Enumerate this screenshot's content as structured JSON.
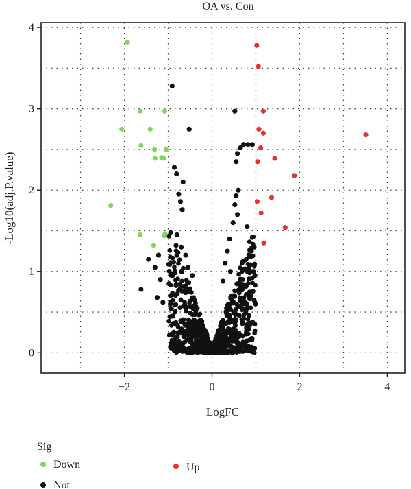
{
  "chart_data": {
    "type": "scatter",
    "title": "OA vs. Con",
    "xlabel": "LogFC",
    "ylabel": "-Log10(adj.P.value)",
    "xlim": [
      -3.9,
      4.4
    ],
    "ylim": [
      -0.25,
      4.06
    ],
    "xticks": [
      -2,
      0,
      2,
      4
    ],
    "xtick_labels": [
      "−2",
      "0",
      "2",
      "4"
    ],
    "yticks": [
      0,
      1,
      2,
      3,
      4
    ],
    "ytick_labels": [
      "0",
      "1",
      "2",
      "3",
      "4"
    ],
    "grid": true,
    "legend": {
      "title": "Sig",
      "position": "bottom-left",
      "entries": [
        {
          "label": "Down",
          "color": "#7ed957"
        },
        {
          "label": "Up",
          "color": "#e8302f"
        },
        {
          "label": "Not",
          "color": "#111111"
        }
      ]
    },
    "series": [
      {
        "name": "Down",
        "color": "#7ed957",
        "points": [
          [
            -1.93,
            3.82
          ],
          [
            -1.64,
            2.97
          ],
          [
            -1.08,
            2.97
          ],
          [
            -2.06,
            2.75
          ],
          [
            -1.41,
            2.75
          ],
          [
            -1.62,
            2.55
          ],
          [
            -1.31,
            2.5
          ],
          [
            -1.05,
            2.5
          ],
          [
            -1.3,
            2.39
          ],
          [
            -1.15,
            2.4
          ],
          [
            -1.1,
            2.39
          ],
          [
            -2.31,
            1.81
          ],
          [
            -1.64,
            1.45
          ],
          [
            -1.07,
            1.46
          ],
          [
            -1.09,
            1.44
          ],
          [
            -1.33,
            1.32
          ]
        ]
      },
      {
        "name": "Up",
        "color": "#e8302f",
        "points": [
          [
            1.02,
            3.78
          ],
          [
            1.06,
            3.52
          ],
          [
            1.17,
            2.97
          ],
          [
            1.07,
            2.75
          ],
          [
            1.17,
            2.7
          ],
          [
            3.51,
            2.68
          ],
          [
            1.11,
            2.52
          ],
          [
            1.43,
            2.39
          ],
          [
            1.04,
            2.35
          ],
          [
            1.88,
            2.18
          ],
          [
            1.36,
            1.91
          ],
          [
            1.03,
            1.86
          ],
          [
            1.12,
            1.72
          ],
          [
            1.67,
            1.54
          ],
          [
            1.18,
            1.35
          ]
        ]
      },
      {
        "name": "Not",
        "color": "#111111",
        "points": [
          [
            -0.91,
            3.28
          ],
          [
            -0.52,
            2.75
          ],
          [
            0.52,
            2.97
          ],
          [
            0.72,
            2.56
          ],
          [
            0.82,
            2.56
          ],
          [
            0.92,
            2.56
          ],
          [
            0.65,
            2.52
          ],
          [
            0.58,
            2.45
          ],
          [
            0.55,
            2.35
          ],
          [
            -0.86,
            2.28
          ],
          [
            -0.81,
            2.2
          ],
          [
            -0.66,
            2.1
          ],
          [
            -0.76,
            1.95
          ],
          [
            -0.72,
            1.86
          ],
          [
            -0.68,
            1.76
          ],
          [
            0.6,
            2.0
          ],
          [
            0.55,
            1.93
          ],
          [
            0.52,
            1.82
          ],
          [
            0.58,
            1.7
          ],
          [
            0.48,
            1.6
          ],
          [
            -0.82,
            1.32
          ],
          [
            -1.22,
            1.2
          ],
          [
            -1.45,
            1.15
          ],
          [
            -1.3,
            1.05
          ],
          [
            -1.18,
            0.9
          ],
          [
            -1.62,
            0.78
          ],
          [
            -1.25,
            0.68
          ],
          [
            -1.12,
            0.62
          ],
          [
            0.8,
            1.55
          ],
          [
            0.92,
            1.42
          ],
          [
            0.96,
            1.3
          ],
          [
            0.88,
            1.18
          ],
          [
            0.95,
            1.0
          ],
          [
            0.98,
            0.95
          ],
          [
            -0.98,
            0.85
          ],
          [
            -0.95,
            0.6
          ],
          [
            -0.9,
            0.45
          ],
          [
            0.78,
            0.82
          ],
          [
            0.85,
            0.7
          ],
          [
            0.7,
            0.6
          ],
          [
            -0.8,
            1.45
          ],
          [
            -0.7,
            1.3
          ],
          [
            -0.6,
            1.2
          ],
          [
            -0.55,
            1.05
          ],
          [
            -0.45,
            0.95
          ],
          [
            0.4,
            1.4
          ],
          [
            0.35,
            1.25
          ],
          [
            0.3,
            1.1
          ],
          [
            0.42,
            1.0
          ],
          [
            0.25,
            0.88
          ]
        ],
        "cloud": {
          "count": 900,
          "shape": "v-funnel",
          "x_range": [
            -1.0,
            1.0
          ],
          "y_range": [
            0.0,
            1.5
          ],
          "note_axis": "y approximately proportional to |x| near the origin"
        }
      }
    ]
  }
}
